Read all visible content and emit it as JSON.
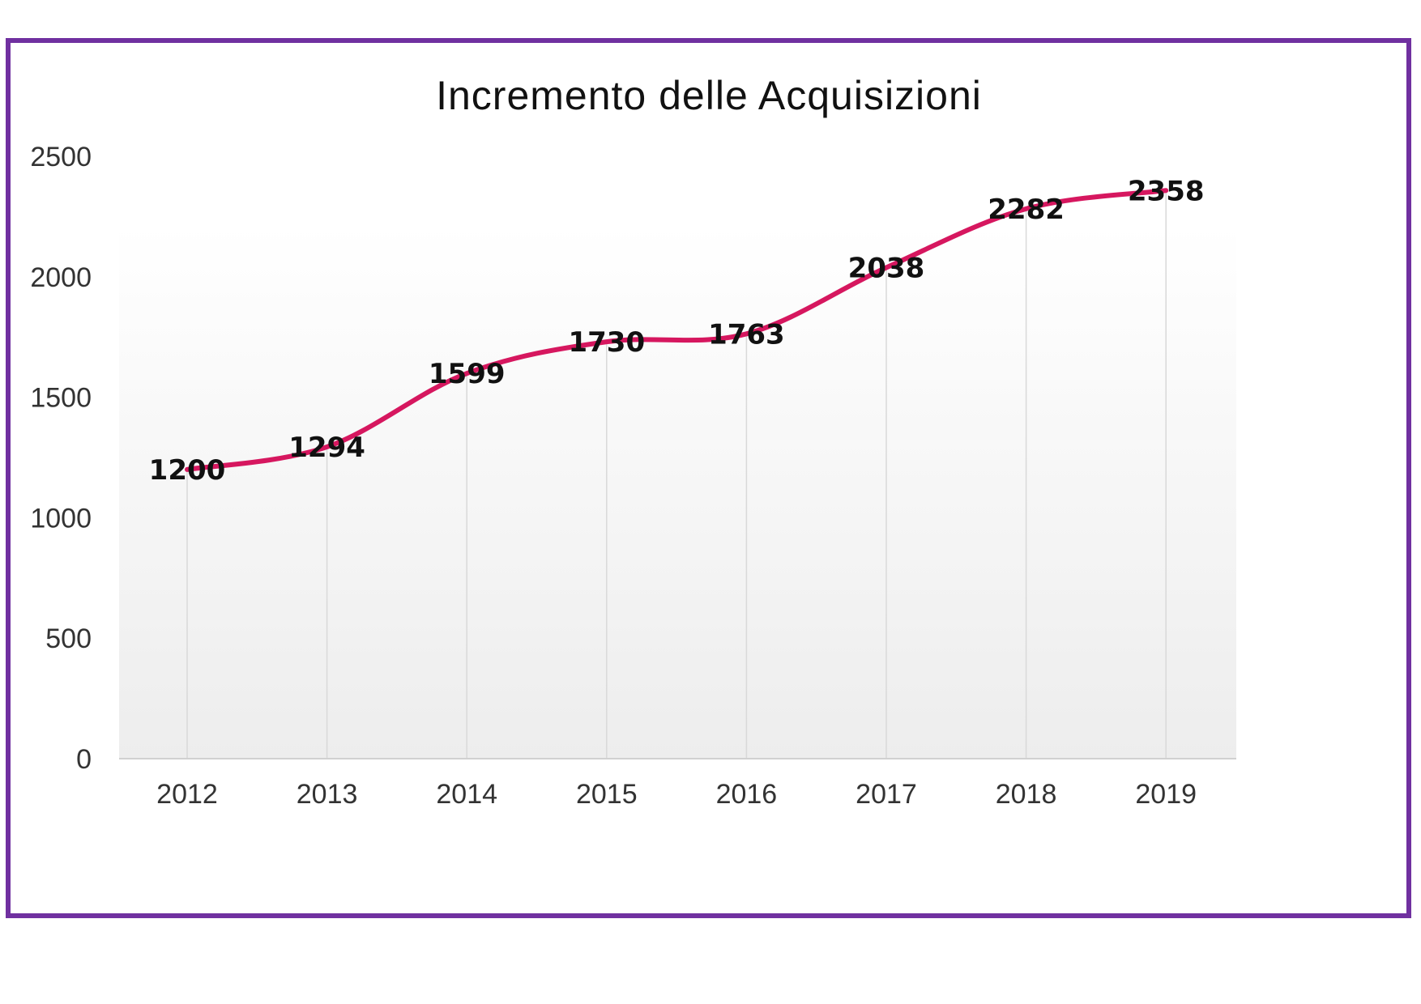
{
  "chart_data": {
    "type": "line",
    "title": "Incremento delle Acquisizioni",
    "xlabel": "",
    "ylabel": "",
    "categories": [
      "2012",
      "2013",
      "2014",
      "2015",
      "2016",
      "2017",
      "2018",
      "2019"
    ],
    "series": [
      {
        "values": [
          1200,
          1294,
          1599,
          1730,
          1763,
          2038,
          2282,
          2358
        ],
        "color": "#d6175f"
      }
    ],
    "ylim": [
      0,
      2500
    ],
    "y_ticks": [
      "0",
      "500",
      "1000",
      "1500",
      "2000",
      "2500"
    ],
    "grid": "vertical drop lines",
    "smooth": true,
    "data_labels": true,
    "legend": "none",
    "frame_color": "#7030a0"
  }
}
